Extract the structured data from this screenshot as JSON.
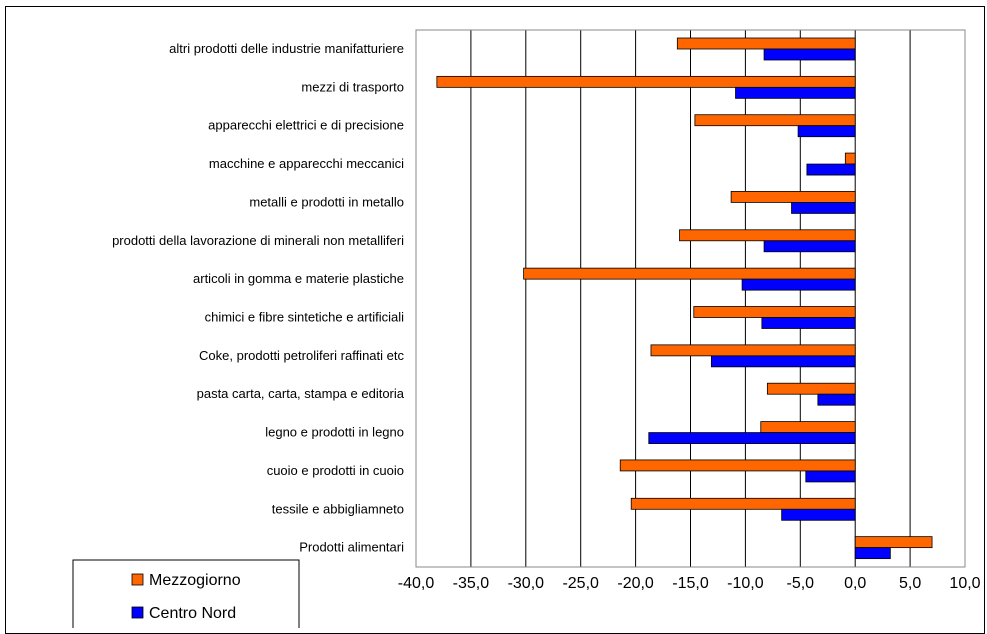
{
  "chart_data": {
    "type": "bar",
    "orientation": "horizontal",
    "categories": [
      "altri prodotti delle industrie manifatturiere",
      "mezzi di trasporto",
      "apparecchi elettrici e di precisione",
      "macchine e apparecchi meccanici",
      "metalli e prodotti in metallo",
      "prodotti della lavorazione di minerali non metalliferi",
      "articoli in gomma e materie plastiche",
      "chimici e fibre sintetiche e artificiali",
      "Coke, prodotti petroliferi raffinati etc",
      "pasta carta, carta, stampa e editoria",
      "legno e prodotti in legno",
      "cuoio e prodotti in cuoio",
      "tessile e abbigliamneto",
      "Prodotti alimentari"
    ],
    "series": [
      {
        "name": "Mezzogiorno",
        "color": "#FF6600",
        "values": [
          -16.2,
          -38.1,
          -14.6,
          -0.9,
          -11.3,
          -16.0,
          -30.2,
          -14.7,
          -18.6,
          -8.0,
          -8.6,
          -21.4,
          -20.4,
          7.0
        ]
      },
      {
        "name": "Centro Nord",
        "color": "#0000FF",
        "values": [
          -8.3,
          -10.9,
          -5.2,
          -4.4,
          -5.8,
          -8.3,
          -10.3,
          -8.5,
          -13.1,
          -3.4,
          -18.8,
          -4.5,
          -6.7,
          3.2
        ]
      }
    ],
    "xlim": [
      -40,
      10
    ],
    "xticks": [
      -40,
      -35,
      -30,
      -25,
      -20,
      -15,
      -10,
      -5,
      0,
      5,
      10
    ],
    "xtick_labels": [
      "-40,0",
      "-35,0",
      "-30,0",
      "-25,0",
      "-20,0",
      "-15,0",
      "-10,0",
      "-5,0",
      "0,0",
      "5,0",
      "10,0"
    ],
    "grid": "vertical",
    "legend_position": "bottom-left",
    "title": "",
    "xlabel": "",
    "ylabel": ""
  }
}
